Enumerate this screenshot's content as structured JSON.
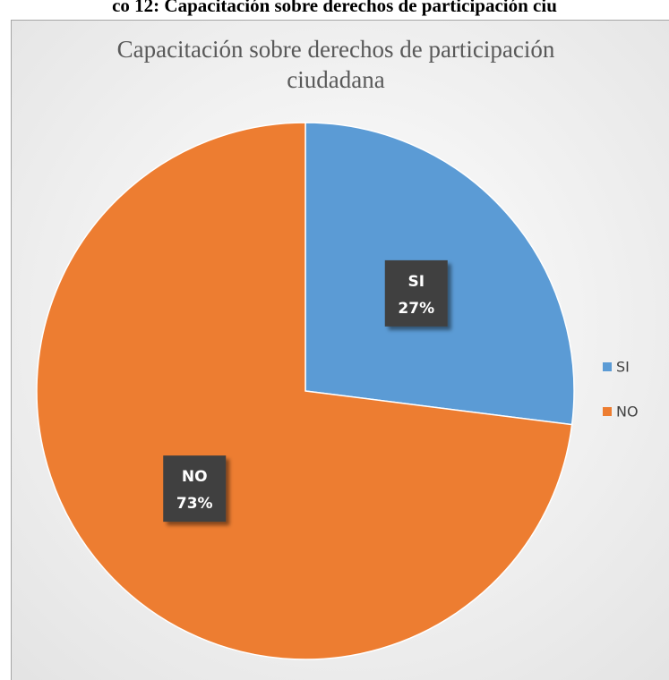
{
  "heading": "co 12: Capacitación sobre derechos de participación ciu",
  "chart_data": {
    "type": "pie",
    "title": "Capacitación sobre derechos de participación ciudadana",
    "categories": [
      "SI",
      "NO"
    ],
    "values": [
      27,
      73
    ],
    "value_labels": [
      "27%",
      "73%"
    ],
    "colors": [
      "#5b9bd5",
      "#ed7d31"
    ],
    "legend": "right"
  }
}
